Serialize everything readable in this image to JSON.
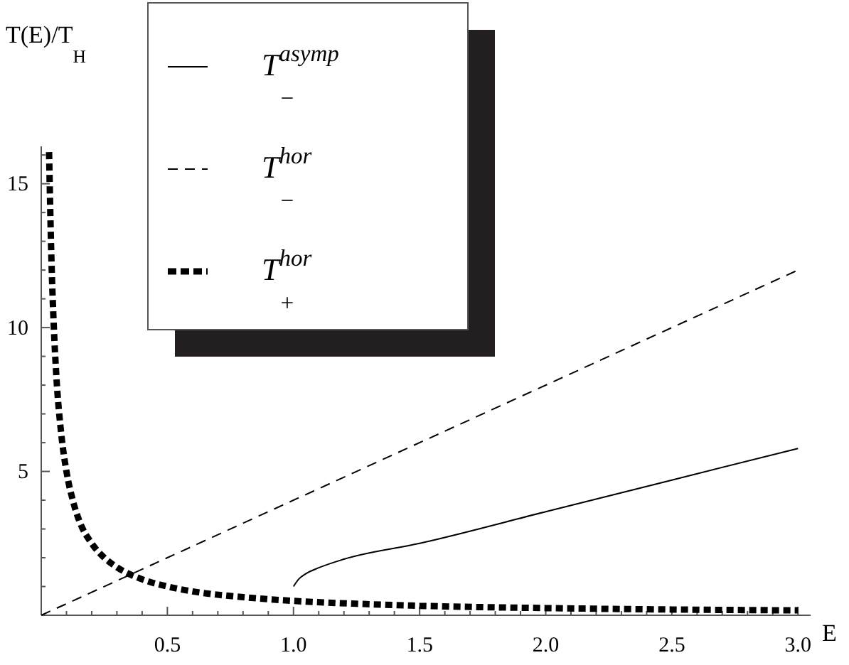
{
  "chart_data": {
    "type": "line",
    "xlabel": "E",
    "ylabel": "T(E)/T$_{H}$",
    "xlim": [
      0,
      3.05
    ],
    "ylim": [
      0,
      16.3
    ],
    "xticks": [
      {
        "value": 0.1,
        "label": null
      },
      {
        "value": 0.2,
        "label": null
      },
      {
        "value": 0.3,
        "label": null
      },
      {
        "value": 0.4,
        "label": null
      },
      0.5,
      {
        "value": 0.6,
        "label": null
      },
      {
        "value": 0.7,
        "label": null
      },
      {
        "value": 0.8,
        "label": null
      },
      {
        "value": 0.9,
        "label": null
      },
      {
        "value": 1,
        "label": "1.0"
      },
      {
        "value": 1.1,
        "label": null
      },
      {
        "value": 1.2,
        "label": null
      },
      {
        "value": 1.3,
        "label": null
      },
      {
        "value": 1.4,
        "label": null
      },
      1.5,
      {
        "value": 1.6,
        "label": null
      },
      {
        "value": 1.7,
        "label": null
      },
      {
        "value": 1.8,
        "label": null
      },
      {
        "value": 1.9,
        "label": null
      },
      {
        "value": 2,
        "label": "2.0"
      },
      {
        "value": 2.1,
        "label": null
      },
      {
        "value": 2.2,
        "label": null
      },
      {
        "value": 2.3,
        "label": null
      },
      {
        "value": 2.4,
        "label": null
      },
      2.5,
      {
        "value": 2.6,
        "label": null
      },
      {
        "value": 2.7,
        "label": null
      },
      {
        "value": 2.8,
        "label": null
      },
      {
        "value": 2.9,
        "label": null
      },
      {
        "value": 3,
        "label": "3.0"
      }
    ],
    "yticks": [
      {
        "value": 1,
        "label": null
      },
      {
        "value": 2,
        "label": null
      },
      {
        "value": 3,
        "label": null
      },
      {
        "value": 4,
        "label": null
      },
      5,
      {
        "value": 6,
        "label": null
      },
      {
        "value": 7,
        "label": null
      },
      {
        "value": 8,
        "label": null
      },
      {
        "value": 9,
        "label": null
      },
      10,
      {
        "value": 11,
        "label": null
      },
      {
        "value": 12,
        "label": null
      },
      {
        "value": 13,
        "label": null
      },
      {
        "value": 14,
        "label": null
      },
      15,
      {
        "value": 16,
        "label": null
      }
    ],
    "grid": false,
    "legend": "top left",
    "series": [
      {
        "name": "T$^{asymp}$$_{−}$",
        "color": "#000000",
        "line_style": "solid",
        "x": [
          1,
          1.02,
          1.05,
          1.1,
          1.2,
          1.5,
          2,
          2.5,
          3
        ],
        "values": [
          1,
          1.25,
          1.45,
          1.65,
          1.95,
          2.5,
          3.6,
          4.7,
          5.8
        ]
      },
      {
        "name": "T$^{hor}$$_{−}$",
        "color": "#000000",
        "line_style": "dashed",
        "x": [
          0,
          3
        ],
        "values": [
          0,
          12
        ]
      },
      {
        "name": "T$^{hor}$$_{+}$",
        "color": "#000000",
        "line_style": "dotted",
        "x": [
          0.031,
          0.04,
          0.05,
          0.06,
          0.08,
          0.1,
          0.125,
          0.15,
          0.2,
          0.25,
          0.3,
          0.4,
          0.5,
          0.6,
          0.8,
          1,
          1.25,
          1.5,
          2,
          2.5,
          3
        ],
        "values": [
          16.1,
          12.5,
          10,
          8.3,
          6.25,
          5,
          4,
          3.3,
          2.5,
          2,
          1.67,
          1.25,
          1,
          0.83,
          0.63,
          0.5,
          0.4,
          0.33,
          0.25,
          0.2,
          0.17
        ]
      }
    ]
  }
}
